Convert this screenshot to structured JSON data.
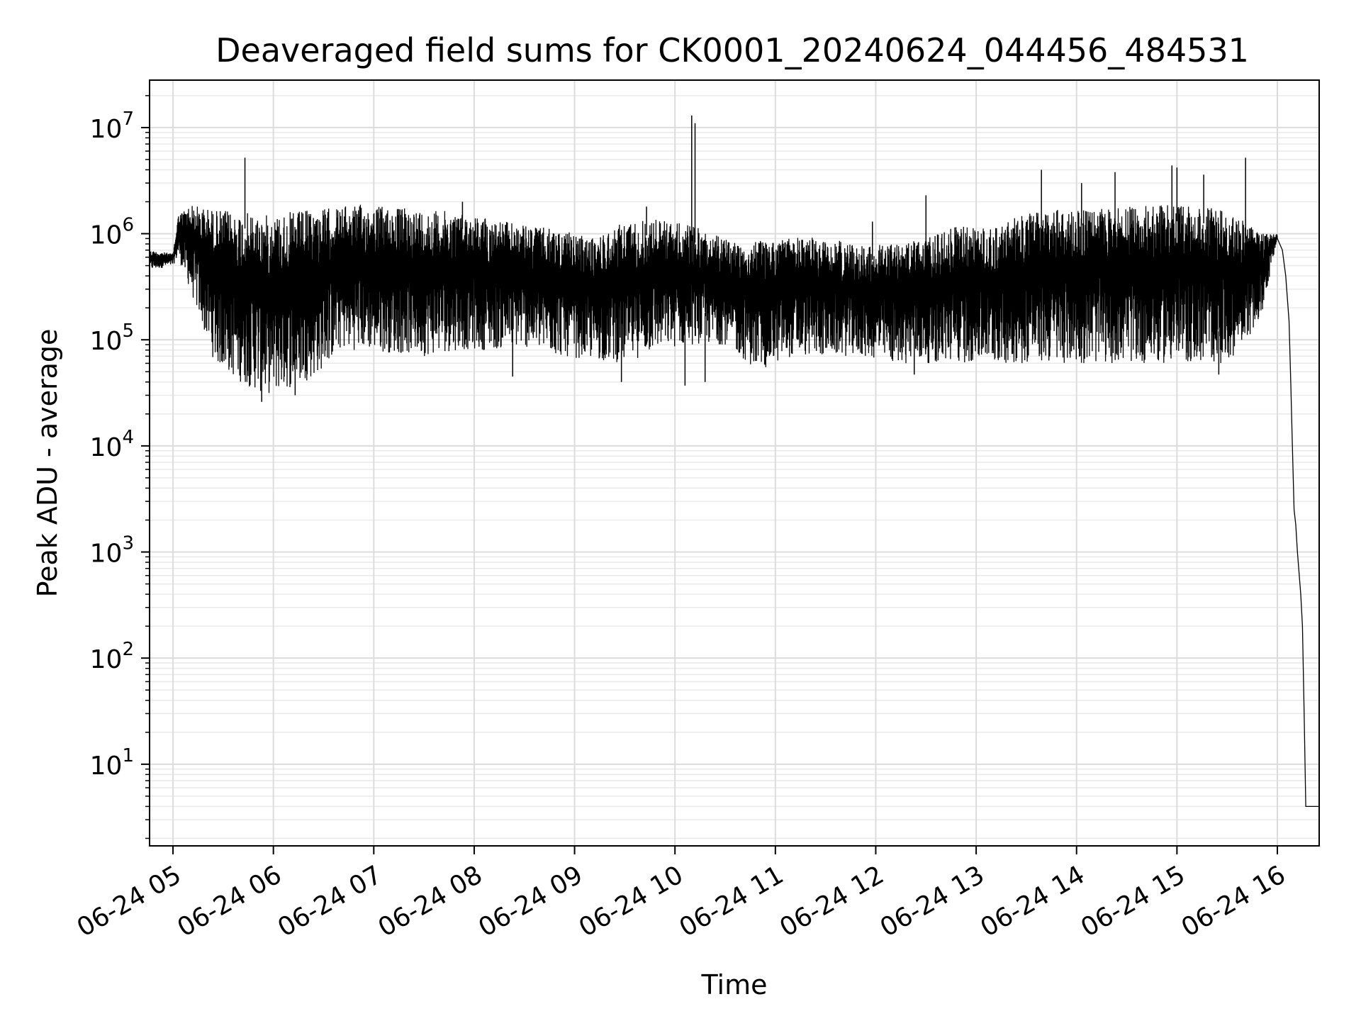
{
  "chart_data": {
    "type": "line",
    "title": "Deaveraged field sums for CK0001_20240624_044456_484531",
    "xlabel": "Time",
    "ylabel": "Peak ADU - average",
    "yscale": "log",
    "ylim": [
      1.7,
      28000000
    ],
    "xlim": [
      "06-24 04:46",
      "06-24 16:25"
    ],
    "grid": true,
    "line_color": "#000000",
    "x_ticks": [
      "06-24 05",
      "06-24 06",
      "06-24 07",
      "06-24 08",
      "06-24 09",
      "06-24 10",
      "06-24 11",
      "06-24 12",
      "06-24 13",
      "06-24 14",
      "06-24 15",
      "06-24 16"
    ],
    "y_ticks": [
      {
        "base": "10",
        "exp": "1",
        "value": 10
      },
      {
        "base": "10",
        "exp": "2",
        "value": 100
      },
      {
        "base": "10",
        "exp": "3",
        "value": 1000
      },
      {
        "base": "10",
        "exp": "4",
        "value": 10000
      },
      {
        "base": "10",
        "exp": "5",
        "value": 100000
      },
      {
        "base": "10",
        "exp": "6",
        "value": 1000000
      },
      {
        "base": "10",
        "exp": "7",
        "value": 10000000
      }
    ],
    "series": [
      {
        "envelope": [
          {
            "x": "06-24 04:46",
            "high": 700000,
            "low": 450000
          },
          {
            "x": "06-24 05:00",
            "high": 650000,
            "low": 500000
          },
          {
            "x": "06-24 05:03",
            "high": 1500000,
            "low": 600000
          },
          {
            "x": "06-24 05:10",
            "high": 1900000,
            "low": 300000
          },
          {
            "x": "06-24 05:25",
            "high": 1700000,
            "low": 60000
          },
          {
            "x": "06-24 05:40",
            "high": 1600000,
            "low": 40000
          },
          {
            "x": "06-24 05:55",
            "high": 1500000,
            "low": 30000
          },
          {
            "x": "06-24 06:10",
            "high": 1600000,
            "low": 35000
          },
          {
            "x": "06-24 06:25",
            "high": 1700000,
            "low": 45000
          },
          {
            "x": "06-24 06:40",
            "high": 1800000,
            "low": 80000
          },
          {
            "x": "06-24 06:55",
            "high": 1900000,
            "low": 80000
          },
          {
            "x": "06-24 07:10",
            "high": 1800000,
            "low": 75000
          },
          {
            "x": "06-24 07:30",
            "high": 1700000,
            "low": 70000
          },
          {
            "x": "06-24 07:50",
            "high": 1600000,
            "low": 80000
          },
          {
            "x": "06-24 08:10",
            "high": 1400000,
            "low": 80000
          },
          {
            "x": "06-24 08:30",
            "high": 1200000,
            "low": 85000
          },
          {
            "x": "06-24 08:50",
            "high": 1100000,
            "low": 70000
          },
          {
            "x": "06-24 09:10",
            "high": 900000,
            "low": 65000
          },
          {
            "x": "06-24 09:30",
            "high": 1300000,
            "low": 60000
          },
          {
            "x": "06-24 09:50",
            "high": 1400000,
            "low": 80000
          },
          {
            "x": "06-24 10:10",
            "high": 1200000,
            "low": 90000
          },
          {
            "x": "06-24 10:30",
            "high": 900000,
            "low": 90000
          },
          {
            "x": "06-24 10:50",
            "high": 850000,
            "low": 50000
          },
          {
            "x": "06-24 11:10",
            "high": 950000,
            "low": 70000
          },
          {
            "x": "06-24 11:30",
            "high": 900000,
            "low": 70000
          },
          {
            "x": "06-24 11:50",
            "high": 800000,
            "low": 70000
          },
          {
            "x": "06-24 12:10",
            "high": 800000,
            "low": 60000
          },
          {
            "x": "06-24 12:30",
            "high": 900000,
            "low": 60000
          },
          {
            "x": "06-24 12:50",
            "high": 1200000,
            "low": 60000
          },
          {
            "x": "06-24 13:10",
            "high": 1100000,
            "low": 60000
          },
          {
            "x": "06-24 13:30",
            "high": 1600000,
            "low": 60000
          },
          {
            "x": "06-24 13:50",
            "high": 1700000,
            "low": 60000
          },
          {
            "x": "06-24 14:10",
            "high": 1700000,
            "low": 60000
          },
          {
            "x": "06-24 14:30",
            "high": 1800000,
            "low": 60000
          },
          {
            "x": "06-24 14:50",
            "high": 1900000,
            "low": 60000
          },
          {
            "x": "06-24 15:10",
            "high": 1800000,
            "low": 60000
          },
          {
            "x": "06-24 15:30",
            "high": 1700000,
            "low": 60000
          },
          {
            "x": "06-24 15:50",
            "high": 1000000,
            "low": 150000
          },
          {
            "x": "06-24 16:00",
            "high": 1000000,
            "low": 900000
          }
        ],
        "spikes": [
          {
            "x": "06-24 05:43",
            "value": 5200000
          },
          {
            "x": "06-24 10:10",
            "value": 13000000
          },
          {
            "x": "06-24 10:12",
            "value": 11000000
          },
          {
            "x": "06-24 12:30",
            "value": 2300000
          },
          {
            "x": "06-24 13:39",
            "value": 4000000
          },
          {
            "x": "06-24 14:03",
            "value": 3000000
          },
          {
            "x": "06-24 14:23",
            "value": 3800000
          },
          {
            "x": "06-24 14:57",
            "value": 4400000
          },
          {
            "x": "06-24 15:00",
            "value": 4200000
          },
          {
            "x": "06-24 15:16",
            "value": 3600000
          },
          {
            "x": "06-24 15:41",
            "value": 5200000
          },
          {
            "x": "06-24 07:53",
            "value": 2000000
          },
          {
            "x": "06-24 09:43",
            "value": 1800000
          },
          {
            "x": "06-24 11:58",
            "value": 1300000
          }
        ],
        "dips": [
          {
            "x": "06-24 05:53",
            "value": 26000
          },
          {
            "x": "06-24 06:13",
            "value": 30000
          },
          {
            "x": "06-24 08:23",
            "value": 45000
          },
          {
            "x": "06-24 09:28",
            "value": 40000
          },
          {
            "x": "06-24 10:06",
            "value": 37000
          },
          {
            "x": "06-24 10:18",
            "value": 40000
          },
          {
            "x": "06-24 15:25",
            "value": 47000
          },
          {
            "x": "06-24 12:23",
            "value": 47000
          }
        ],
        "tail": [
          {
            "x": "06-24 16:00",
            "value": 900000
          },
          {
            "x": "06-24 16:03",
            "value": 700000
          },
          {
            "x": "06-24 16:05",
            "value": 400000
          },
          {
            "x": "06-24 16:07",
            "value": 150000
          },
          {
            "x": "06-24 16:08",
            "value": 40000
          },
          {
            "x": "06-24 16:09",
            "value": 10000
          },
          {
            "x": "06-24 16:10",
            "value": 2500
          },
          {
            "x": "06-24 16:11",
            "value": 1800
          },
          {
            "x": "06-24 16:12",
            "value": 1000
          },
          {
            "x": "06-24 16:14",
            "value": 400
          },
          {
            "x": "06-24 16:15",
            "value": 200
          },
          {
            "x": "06-24 16:16",
            "value": 30
          },
          {
            "x": "06-24 16:17",
            "value": 4
          },
          {
            "x": "06-24 16:25",
            "value": 4
          }
        ]
      }
    ]
  }
}
